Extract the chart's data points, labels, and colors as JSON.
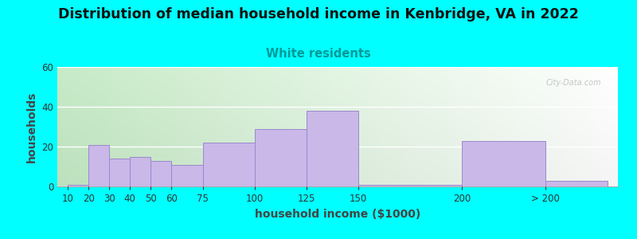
{
  "title": "Distribution of median household income in Kenbridge, VA in 2022",
  "subtitle": "White residents",
  "xlabel": "household income ($1000)",
  "ylabel": "households",
  "background_color": "#00FFFF",
  "bar_color": "#C9B8E8",
  "bar_edge_color": "#9B88CC",
  "title_fontsize": 12.5,
  "subtitle_fontsize": 10.5,
  "subtitle_color": "#009999",
  "xlabel_fontsize": 10,
  "ylabel_fontsize": 10,
  "values": [
    1,
    21,
    14,
    15,
    13,
    11,
    22,
    29,
    38,
    1,
    23,
    3
  ],
  "bar_lefts": [
    10,
    20,
    30,
    40,
    50,
    60,
    75,
    100,
    125,
    150,
    200,
    240
  ],
  "bar_widths": [
    10,
    10,
    10,
    10,
    10,
    15,
    25,
    25,
    25,
    50,
    40,
    30
  ],
  "xtick_positions": [
    10,
    20,
    30,
    40,
    50,
    60,
    75,
    100,
    125,
    150,
    200,
    240
  ],
  "xtick_labels": [
    "10",
    "20",
    "30",
    "40",
    "50",
    "60",
    "75",
    "100",
    "125",
    "150",
    "200",
    "> 200"
  ],
  "ylim": [
    0,
    60
  ],
  "yticks": [
    0,
    20,
    40,
    60
  ],
  "xlim": [
    5,
    275
  ],
  "watermark": "City-Data.com"
}
